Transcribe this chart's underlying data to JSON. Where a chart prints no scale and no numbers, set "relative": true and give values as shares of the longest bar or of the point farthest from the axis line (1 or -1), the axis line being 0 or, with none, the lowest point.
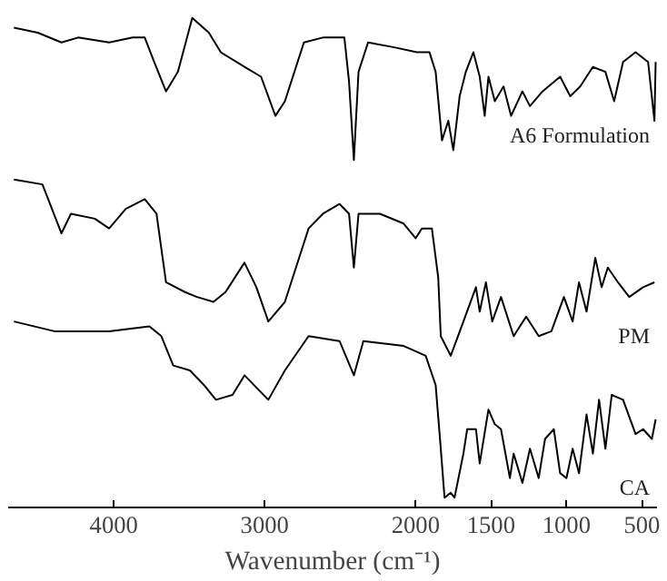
{
  "chart_data": {
    "type": "line",
    "xlabel": "Wavenumber (cm⁻¹)",
    "relative": true,
    "xlim": [
      4700,
      400
    ],
    "xticks": [
      4000,
      3000,
      2000,
      1500,
      1000,
      500
    ],
    "legend": false,
    "grid": false,
    "series": [
      {
        "name": "A6 Formulation",
        "color": "#000000",
        "x": [
          4662,
          4504,
          4347,
          4236,
          4031,
          3874,
          3795,
          3732,
          3654,
          3575,
          3480,
          3370,
          3291,
          3134,
          3024,
          2929,
          2866,
          2740,
          2614,
          2472,
          2441,
          2409,
          2378,
          2315,
          2142,
          1992,
          1908,
          1867,
          1825,
          1783,
          1750,
          1708,
          1667,
          1617,
          1575,
          1542,
          1517,
          1475,
          1417,
          1367,
          1292,
          1242,
          1159,
          1042,
          975,
          909,
          825,
          742,
          684,
          625,
          542,
          459,
          417,
          409
        ],
        "values": [
          0.98,
          0.97,
          0.95,
          0.96,
          0.95,
          0.96,
          0.96,
          0.91,
          0.85,
          0.89,
          1.0,
          0.97,
          0.93,
          0.9,
          0.88,
          0.8,
          0.83,
          0.95,
          0.96,
          0.96,
          0.87,
          0.71,
          0.89,
          0.95,
          0.94,
          0.93,
          0.93,
          0.89,
          0.75,
          0.79,
          0.73,
          0.84,
          0.89,
          0.93,
          0.88,
          0.8,
          0.88,
          0.83,
          0.86,
          0.8,
          0.85,
          0.82,
          0.85,
          0.88,
          0.84,
          0.86,
          0.9,
          0.89,
          0.83,
          0.91,
          0.93,
          0.91,
          0.79,
          0.91
        ]
      },
      {
        "name": "PM",
        "color": "#000000",
        "x": [
          4662,
          4473,
          4347,
          4284,
          4126,
          4031,
          3921,
          3795,
          3717,
          3654,
          3528,
          3449,
          3339,
          3260,
          3134,
          3055,
          2976,
          2866,
          2709,
          2614,
          2504,
          2441,
          2409,
          2378,
          2236,
          2079,
          2000,
          1958,
          1892,
          1850,
          1833,
          1767,
          1683,
          1600,
          1575,
          1534,
          1492,
          1434,
          1350,
          1267,
          1184,
          1100,
          1017,
          959,
          917,
          867,
          809,
          767,
          726,
          659,
          584,
          492,
          417
        ],
        "values": [
          0.67,
          0.66,
          0.56,
          0.6,
          0.59,
          0.57,
          0.61,
          0.63,
          0.6,
          0.46,
          0.44,
          0.43,
          0.42,
          0.44,
          0.5,
          0.45,
          0.38,
          0.42,
          0.57,
          0.6,
          0.62,
          0.6,
          0.49,
          0.6,
          0.6,
          0.58,
          0.55,
          0.57,
          0.57,
          0.47,
          0.35,
          0.31,
          0.38,
          0.45,
          0.4,
          0.46,
          0.38,
          0.43,
          0.35,
          0.39,
          0.35,
          0.36,
          0.43,
          0.38,
          0.46,
          0.4,
          0.51,
          0.45,
          0.49,
          0.46,
          0.43,
          0.45,
          0.46
        ]
      },
      {
        "name": "CA",
        "color": "#000000",
        "x": [
          4662,
          4394,
          4031,
          3764,
          3685,
          3606,
          3496,
          3402,
          3323,
          3213,
          3134,
          2976,
          2866,
          2709,
          2504,
          2409,
          2346,
          2079,
          1933,
          1867,
          1833,
          1808,
          1767,
          1742,
          1683,
          1658,
          1600,
          1575,
          1517,
          1475,
          1434,
          1375,
          1350,
          1292,
          1242,
          1184,
          1142,
          1084,
          1042,
          1000,
          959,
          917,
          867,
          825,
          784,
          742,
          700,
          625,
          542,
          492,
          434,
          409
        ],
        "values": [
          0.38,
          0.36,
          0.36,
          0.37,
          0.35,
          0.29,
          0.28,
          0.25,
          0.22,
          0.23,
          0.27,
          0.22,
          0.28,
          0.35,
          0.34,
          0.27,
          0.34,
          0.33,
          0.31,
          0.25,
          0.12,
          0.02,
          0.03,
          0.02,
          0.11,
          0.16,
          0.16,
          0.09,
          0.2,
          0.17,
          0.16,
          0.06,
          0.11,
          0.05,
          0.12,
          0.06,
          0.14,
          0.16,
          0.07,
          0.06,
          0.12,
          0.07,
          0.19,
          0.11,
          0.22,
          0.12,
          0.23,
          0.22,
          0.15,
          0.16,
          0.14,
          0.18
        ]
      }
    ]
  }
}
